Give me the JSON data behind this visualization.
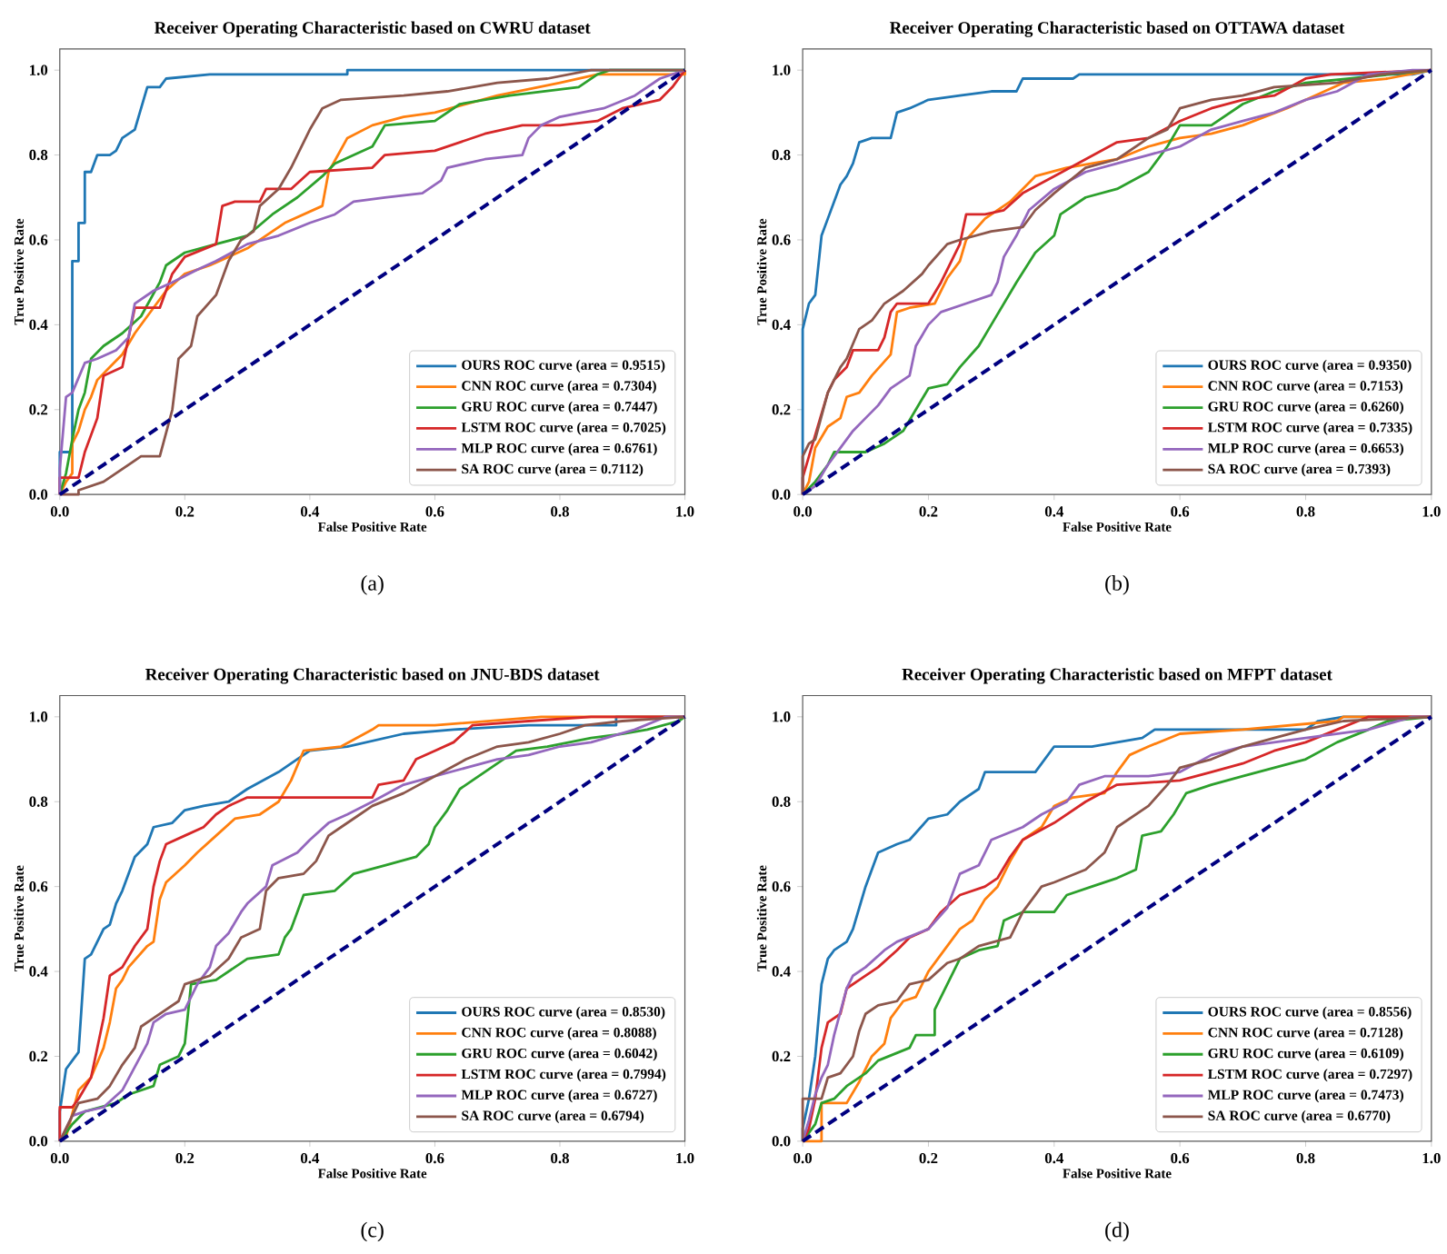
{
  "chart_data": [
    {
      "type": "line",
      "title": "Receiver Operating Characteristic based on CWRU dataset",
      "xlabel": "False Positive Rate",
      "ylabel": "True Positive Rate",
      "xlim": [
        0,
        1
      ],
      "ylim": [
        0,
        1.05
      ],
      "xticks": [
        {
          "value": 0,
          "label": "0.0"
        },
        {
          "value": 0.2,
          "label": "0.2"
        },
        {
          "value": 0.4,
          "label": "0.4"
        },
        {
          "value": 0.6,
          "label": "0.6"
        },
        {
          "value": 0.8,
          "label": "0.8"
        },
        {
          "value": 1,
          "label": "1.0"
        }
      ],
      "yticks": [
        {
          "value": 0,
          "label": "0.0"
        },
        {
          "value": 0.2,
          "label": "0.2"
        },
        {
          "value": 0.4,
          "label": "0.4"
        },
        {
          "value": 0.6,
          "label": "0.6"
        },
        {
          "value": 0.8,
          "label": "0.8"
        },
        {
          "value": 1,
          "label": "1.0"
        }
      ],
      "legend": "bottom right",
      "annotations": [
        "(a)"
      ],
      "series": [
        {
          "name": "OURS ROC curve (area = 0.9515)",
          "color": "#1f77b4",
          "x": [
            0,
            0,
            0.02,
            0.02,
            0.03,
            0.03,
            0.04,
            0.04,
            0.05,
            0.06,
            0.08,
            0.09,
            0.1,
            0.12,
            0.13,
            0.14,
            0.16,
            0.17,
            0.24,
            0.46,
            0.46,
            1
          ],
          "values": [
            0,
            0.1,
            0.1,
            0.55,
            0.55,
            0.64,
            0.64,
            0.76,
            0.76,
            0.8,
            0.8,
            0.81,
            0.84,
            0.86,
            0.91,
            0.96,
            0.96,
            0.98,
            0.99,
            0.99,
            1,
            1
          ]
        },
        {
          "name": "CNN ROC curve (area = 0.7304)",
          "color": "#ff7f0e",
          "x": [
            0,
            0.01,
            0.02,
            0.02,
            0.03,
            0.04,
            0.05,
            0.06,
            0.08,
            0.1,
            0.12,
            0.14,
            0.17,
            0.2,
            0.24,
            0.3,
            0.36,
            0.42,
            0.43,
            0.46,
            0.5,
            0.55,
            0.6,
            0.7,
            0.8,
            0.86,
            1,
            1
          ],
          "values": [
            0,
            0.03,
            0.05,
            0.12,
            0.15,
            0.2,
            0.23,
            0.27,
            0.3,
            0.33,
            0.38,
            0.42,
            0.48,
            0.52,
            0.54,
            0.58,
            0.64,
            0.68,
            0.76,
            0.84,
            0.87,
            0.89,
            0.9,
            0.94,
            0.97,
            0.99,
            0.99,
            1
          ]
        },
        {
          "name": "GRU ROC curve (area = 0.7447)",
          "color": "#2ca02c",
          "x": [
            0,
            0.01,
            0.02,
            0.03,
            0.04,
            0.05,
            0.07,
            0.1,
            0.13,
            0.16,
            0.17,
            0.2,
            0.25,
            0.3,
            0.34,
            0.38,
            0.42,
            0.44,
            0.5,
            0.52,
            0.6,
            0.64,
            0.72,
            0.83,
            0.86,
            0.88,
            1
          ],
          "values": [
            0,
            0.05,
            0.13,
            0.2,
            0.24,
            0.32,
            0.35,
            0.38,
            0.42,
            0.5,
            0.54,
            0.57,
            0.59,
            0.61,
            0.66,
            0.7,
            0.75,
            0.78,
            0.82,
            0.87,
            0.88,
            0.92,
            0.94,
            0.96,
            0.99,
            1,
            1
          ]
        },
        {
          "name": "LSTM ROC curve (area = 0.7025)",
          "color": "#d62728",
          "x": [
            0,
            0,
            0.03,
            0.04,
            0.05,
            0.06,
            0.07,
            0.1,
            0.12,
            0.16,
            0.18,
            0.2,
            0.25,
            0.26,
            0.28,
            0.32,
            0.33,
            0.37,
            0.4,
            0.5,
            0.52,
            0.6,
            0.68,
            0.74,
            0.8,
            0.86,
            0.9,
            0.96,
            0.98,
            1
          ],
          "values": [
            0,
            0.04,
            0.04,
            0.1,
            0.14,
            0.18,
            0.28,
            0.3,
            0.44,
            0.44,
            0.52,
            0.56,
            0.59,
            0.68,
            0.69,
            0.69,
            0.72,
            0.72,
            0.76,
            0.77,
            0.8,
            0.81,
            0.85,
            0.87,
            0.87,
            0.88,
            0.91,
            0.93,
            0.96,
            1
          ]
        },
        {
          "name": "MLP ROC curve (area = 0.6761)",
          "color": "#9467bd",
          "x": [
            0,
            0,
            0.01,
            0.02,
            0.04,
            0.06,
            0.09,
            0.11,
            0.12,
            0.15,
            0.18,
            0.22,
            0.25,
            0.3,
            0.35,
            0.4,
            0.44,
            0.47,
            0.52,
            0.58,
            0.61,
            0.62,
            0.68,
            0.74,
            0.75,
            0.77,
            0.8,
            0.87,
            0.92,
            0.96,
            1
          ],
          "values": [
            0,
            0.06,
            0.23,
            0.24,
            0.31,
            0.32,
            0.34,
            0.37,
            0.45,
            0.48,
            0.5,
            0.53,
            0.55,
            0.59,
            0.61,
            0.64,
            0.66,
            0.69,
            0.7,
            0.71,
            0.74,
            0.77,
            0.79,
            0.8,
            0.84,
            0.87,
            0.89,
            0.91,
            0.94,
            0.98,
            1
          ]
        },
        {
          "name": "SA ROC curve (area = 0.7112)",
          "color": "#8c564b",
          "x": [
            0,
            0.03,
            0.03,
            0.07,
            0.1,
            0.13,
            0.16,
            0.18,
            0.19,
            0.21,
            0.22,
            0.25,
            0.27,
            0.29,
            0.31,
            0.32,
            0.35,
            0.37,
            0.38,
            0.4,
            0.42,
            0.45,
            0.55,
            0.62,
            0.7,
            0.78,
            0.85,
            1
          ],
          "values": [
            0,
            0,
            0.01,
            0.03,
            0.06,
            0.09,
            0.09,
            0.2,
            0.32,
            0.35,
            0.42,
            0.47,
            0.55,
            0.6,
            0.62,
            0.68,
            0.72,
            0.77,
            0.8,
            0.86,
            0.91,
            0.93,
            0.94,
            0.95,
            0.97,
            0.98,
            1,
            1
          ]
        },
        {
          "color": "#000080",
          "line_style": "dashed",
          "x": [
            0,
            1
          ],
          "values": [
            0,
            1
          ]
        }
      ]
    },
    {
      "type": "line",
      "title": "Receiver Operating Characteristic based on OTTAWA dataset",
      "xlabel": "False Positive Rate",
      "ylabel": "True Positive Rate",
      "xlim": [
        0,
        1
      ],
      "ylim": [
        0,
        1.05
      ],
      "xticks": [
        {
          "value": 0,
          "label": "0.0"
        },
        {
          "value": 0.2,
          "label": "0.2"
        },
        {
          "value": 0.4,
          "label": "0.4"
        },
        {
          "value": 0.6,
          "label": "0.6"
        },
        {
          "value": 0.8,
          "label": "0.8"
        },
        {
          "value": 1,
          "label": "1.0"
        }
      ],
      "yticks": [
        {
          "value": 0,
          "label": "0.0"
        },
        {
          "value": 0.2,
          "label": "0.2"
        },
        {
          "value": 0.4,
          "label": "0.4"
        },
        {
          "value": 0.6,
          "label": "0.6"
        },
        {
          "value": 0.8,
          "label": "0.8"
        },
        {
          "value": 1,
          "label": "1.0"
        }
      ],
      "legend": "bottom right",
      "annotations": [
        "(b)"
      ],
      "series": [
        {
          "name": "OURS ROC curve (area = 0.9350)",
          "color": "#1f77b4",
          "x": [
            0,
            0,
            0.01,
            0.02,
            0.03,
            0.04,
            0.06,
            0.07,
            0.08,
            0.09,
            0.11,
            0.14,
            0.15,
            0.17,
            0.2,
            0.25,
            0.3,
            0.34,
            0.35,
            0.43,
            0.44,
            0.8,
            0.97,
            1
          ],
          "values": [
            0,
            0.39,
            0.45,
            0.47,
            0.61,
            0.65,
            0.73,
            0.75,
            0.78,
            0.83,
            0.84,
            0.84,
            0.9,
            0.91,
            0.93,
            0.94,
            0.95,
            0.95,
            0.98,
            0.98,
            0.99,
            0.99,
            0.99,
            1
          ]
        },
        {
          "name": "CNN ROC curve (area = 0.7153)",
          "color": "#ff7f0e",
          "x": [
            0,
            0.01,
            0.02,
            0.04,
            0.06,
            0.07,
            0.09,
            0.11,
            0.14,
            0.15,
            0.17,
            0.21,
            0.23,
            0.25,
            0.26,
            0.29,
            0.33,
            0.35,
            0.37,
            0.42,
            0.5,
            0.55,
            0.6,
            0.65,
            0.7,
            0.77,
            0.83,
            0.86,
            0.93,
            1
          ],
          "values": [
            0,
            0.03,
            0.11,
            0.16,
            0.18,
            0.23,
            0.24,
            0.28,
            0.33,
            0.43,
            0.44,
            0.45,
            0.51,
            0.55,
            0.6,
            0.65,
            0.69,
            0.72,
            0.75,
            0.77,
            0.79,
            0.82,
            0.84,
            0.85,
            0.87,
            0.91,
            0.95,
            0.97,
            0.98,
            1
          ]
        },
        {
          "name": "GRU ROC curve (area = 0.6260)",
          "color": "#2ca02c",
          "x": [
            0,
            0.02,
            0.04,
            0.05,
            0.1,
            0.13,
            0.16,
            0.18,
            0.2,
            0.23,
            0.25,
            0.28,
            0.3,
            0.34,
            0.37,
            0.4,
            0.41,
            0.45,
            0.5,
            0.55,
            0.58,
            0.6,
            0.65,
            0.7,
            0.75,
            0.8,
            0.87,
            1
          ],
          "values": [
            0,
            0.03,
            0.07,
            0.1,
            0.1,
            0.12,
            0.15,
            0.2,
            0.25,
            0.26,
            0.3,
            0.35,
            0.4,
            0.5,
            0.57,
            0.61,
            0.66,
            0.7,
            0.72,
            0.76,
            0.82,
            0.87,
            0.87,
            0.92,
            0.95,
            0.97,
            0.98,
            1
          ]
        },
        {
          "name": "LSTM ROC curve (area = 0.7335)",
          "color": "#d62728",
          "x": [
            0,
            0,
            0.01,
            0.02,
            0.03,
            0.04,
            0.05,
            0.07,
            0.08,
            0.12,
            0.13,
            0.14,
            0.15,
            0.2,
            0.22,
            0.25,
            0.26,
            0.29,
            0.32,
            0.35,
            0.4,
            0.45,
            0.5,
            0.55,
            0.6,
            0.65,
            0.7,
            0.75,
            0.8,
            0.84,
            1
          ],
          "values": [
            0,
            0.04,
            0.09,
            0.14,
            0.19,
            0.24,
            0.27,
            0.3,
            0.34,
            0.34,
            0.37,
            0.43,
            0.45,
            0.45,
            0.5,
            0.59,
            0.66,
            0.66,
            0.67,
            0.71,
            0.75,
            0.79,
            0.83,
            0.84,
            0.88,
            0.91,
            0.93,
            0.94,
            0.98,
            0.99,
            1
          ]
        },
        {
          "name": "MLP ROC curve (area = 0.6653)",
          "color": "#9467bd",
          "x": [
            0,
            0.02,
            0.04,
            0.06,
            0.08,
            0.1,
            0.12,
            0.14,
            0.17,
            0.18,
            0.2,
            0.22,
            0.26,
            0.3,
            0.31,
            0.32,
            0.34,
            0.36,
            0.4,
            0.45,
            0.5,
            0.55,
            0.6,
            0.65,
            0.7,
            0.75,
            0.8,
            0.85,
            0.9,
            0.97,
            1
          ],
          "values": [
            0,
            0.02,
            0.07,
            0.11,
            0.15,
            0.18,
            0.21,
            0.25,
            0.28,
            0.35,
            0.4,
            0.43,
            0.45,
            0.47,
            0.5,
            0.56,
            0.61,
            0.67,
            0.72,
            0.76,
            0.78,
            0.8,
            0.82,
            0.86,
            0.88,
            0.9,
            0.93,
            0.95,
            0.99,
            1,
            1
          ]
        },
        {
          "name": "SA ROC curve (area = 0.7393)",
          "color": "#8c564b",
          "x": [
            0,
            0,
            0.01,
            0.02,
            0.04,
            0.06,
            0.07,
            0.09,
            0.11,
            0.13,
            0.16,
            0.19,
            0.2,
            0.23,
            0.25,
            0.3,
            0.35,
            0.37,
            0.4,
            0.45,
            0.5,
            0.55,
            0.58,
            0.6,
            0.65,
            0.7,
            0.75,
            0.85,
            0.92,
            1
          ],
          "values": [
            0,
            0.09,
            0.12,
            0.13,
            0.24,
            0.3,
            0.32,
            0.39,
            0.41,
            0.45,
            0.48,
            0.52,
            0.54,
            0.59,
            0.6,
            0.62,
            0.63,
            0.67,
            0.71,
            0.77,
            0.79,
            0.84,
            0.86,
            0.91,
            0.93,
            0.94,
            0.96,
            0.97,
            0.99,
            1
          ]
        },
        {
          "color": "#000080",
          "line_style": "dashed",
          "x": [
            0,
            1
          ],
          "values": [
            0,
            1
          ]
        }
      ]
    },
    {
      "type": "line",
      "title": "Receiver Operating Characteristic based on JNU-BDS dataset",
      "xlabel": "False Positive Rate",
      "ylabel": "True Positive Rate",
      "xlim": [
        0,
        1
      ],
      "ylim": [
        0,
        1.05
      ],
      "xticks": [
        {
          "value": 0,
          "label": "0.0"
        },
        {
          "value": 0.2,
          "label": "0.2"
        },
        {
          "value": 0.4,
          "label": "0.4"
        },
        {
          "value": 0.6,
          "label": "0.6"
        },
        {
          "value": 0.8,
          "label": "0.8"
        },
        {
          "value": 1,
          "label": "1.0"
        }
      ],
      "yticks": [
        {
          "value": 0,
          "label": "0.0"
        },
        {
          "value": 0.2,
          "label": "0.2"
        },
        {
          "value": 0.4,
          "label": "0.4"
        },
        {
          "value": 0.6,
          "label": "0.6"
        },
        {
          "value": 0.8,
          "label": "0.8"
        },
        {
          "value": 1,
          "label": "1.0"
        }
      ],
      "legend": "bottom right",
      "annotations": [
        "(c)"
      ],
      "series": [
        {
          "name": "OURS ROC curve (area = 0.8530)",
          "color": "#1f77b4",
          "x": [
            0,
            0,
            0.01,
            0.02,
            0.03,
            0.04,
            0.05,
            0.07,
            0.08,
            0.09,
            0.1,
            0.12,
            0.14,
            0.15,
            0.18,
            0.2,
            0.23,
            0.27,
            0.3,
            0.35,
            0.37,
            0.4,
            0.46,
            0.55,
            0.63,
            0.75,
            0.89,
            0.89,
            1
          ],
          "values": [
            0,
            0.07,
            0.17,
            0.19,
            0.21,
            0.43,
            0.44,
            0.5,
            0.51,
            0.56,
            0.59,
            0.67,
            0.7,
            0.74,
            0.75,
            0.78,
            0.79,
            0.8,
            0.83,
            0.87,
            0.89,
            0.92,
            0.93,
            0.96,
            0.97,
            0.98,
            0.98,
            1,
            1
          ]
        },
        {
          "name": "CNN ROC curve (area = 0.8088)",
          "color": "#ff7f0e",
          "x": [
            0,
            0.01,
            0.03,
            0.05,
            0.07,
            0.08,
            0.09,
            0.1,
            0.11,
            0.14,
            0.15,
            0.16,
            0.17,
            0.2,
            0.22,
            0.25,
            0.28,
            0.32,
            0.35,
            0.37,
            0.39,
            0.45,
            0.5,
            0.51,
            0.6,
            0.77,
            1
          ],
          "values": [
            0,
            0.01,
            0.12,
            0.15,
            0.22,
            0.28,
            0.36,
            0.38,
            0.41,
            0.46,
            0.47,
            0.57,
            0.61,
            0.65,
            0.68,
            0.72,
            0.76,
            0.77,
            0.8,
            0.85,
            0.92,
            0.93,
            0.97,
            0.98,
            0.98,
            1,
            1
          ]
        },
        {
          "name": "GRU ROC curve (area = 0.6042)",
          "color": "#2ca02c",
          "x": [
            0,
            0.02,
            0.04,
            0.09,
            0.11,
            0.15,
            0.16,
            0.19,
            0.2,
            0.21,
            0.25,
            0.3,
            0.35,
            0.36,
            0.37,
            0.38,
            0.39,
            0.44,
            0.47,
            0.52,
            0.57,
            0.59,
            0.6,
            0.62,
            0.64,
            0.66,
            0.7,
            0.73,
            0.78,
            0.85,
            0.9,
            0.94,
            0.99,
            1
          ],
          "values": [
            0,
            0.04,
            0.07,
            0.09,
            0.11,
            0.13,
            0.18,
            0.2,
            0.23,
            0.37,
            0.38,
            0.43,
            0.44,
            0.48,
            0.5,
            0.54,
            0.58,
            0.59,
            0.63,
            0.65,
            0.67,
            0.7,
            0.74,
            0.78,
            0.83,
            0.85,
            0.89,
            0.92,
            0.93,
            0.95,
            0.96,
            0.97,
            0.99,
            1
          ]
        },
        {
          "name": "LSTM ROC curve (area = 0.7994)",
          "color": "#d62728",
          "x": [
            0,
            0,
            0.02,
            0.03,
            0.05,
            0.07,
            0.08,
            0.1,
            0.12,
            0.14,
            0.15,
            0.16,
            0.17,
            0.2,
            0.23,
            0.25,
            0.27,
            0.3,
            0.45,
            0.5,
            0.51,
            0.55,
            0.57,
            0.6,
            0.63,
            0.66,
            0.75,
            0.85,
            1
          ],
          "values": [
            0,
            0.08,
            0.08,
            0.1,
            0.15,
            0.29,
            0.39,
            0.41,
            0.46,
            0.5,
            0.6,
            0.66,
            0.7,
            0.72,
            0.74,
            0.77,
            0.79,
            0.81,
            0.81,
            0.81,
            0.84,
            0.85,
            0.9,
            0.92,
            0.94,
            0.98,
            0.99,
            1,
            1
          ]
        },
        {
          "name": "MLP ROC curve (area = 0.6727)",
          "color": "#9467bd",
          "x": [
            0,
            0.02,
            0.04,
            0.07,
            0.1,
            0.14,
            0.15,
            0.17,
            0.2,
            0.22,
            0.24,
            0.25,
            0.27,
            0.29,
            0.3,
            0.33,
            0.34,
            0.38,
            0.4,
            0.43,
            0.46,
            0.5,
            0.55,
            0.6,
            0.65,
            0.7,
            0.75,
            0.8,
            0.85,
            0.92,
            0.97,
            1
          ],
          "values": [
            0,
            0.06,
            0.07,
            0.08,
            0.12,
            0.23,
            0.28,
            0.3,
            0.31,
            0.37,
            0.41,
            0.46,
            0.49,
            0.54,
            0.56,
            0.6,
            0.65,
            0.68,
            0.71,
            0.75,
            0.77,
            0.8,
            0.84,
            0.86,
            0.88,
            0.9,
            0.91,
            0.93,
            0.94,
            0.97,
            1,
            1
          ]
        },
        {
          "name": "SA ROC curve (area = 0.6794)",
          "color": "#8c564b",
          "x": [
            0,
            0.01,
            0.02,
            0.03,
            0.06,
            0.08,
            0.1,
            0.12,
            0.13,
            0.15,
            0.19,
            0.2,
            0.24,
            0.27,
            0.29,
            0.32,
            0.33,
            0.35,
            0.39,
            0.41,
            0.43,
            0.45,
            0.48,
            0.5,
            0.55,
            0.6,
            0.65,
            0.7,
            0.75,
            0.8,
            0.84,
            0.9,
            1
          ],
          "values": [
            0,
            0.03,
            0.06,
            0.09,
            0.1,
            0.13,
            0.18,
            0.22,
            0.27,
            0.29,
            0.33,
            0.37,
            0.39,
            0.43,
            0.48,
            0.5,
            0.59,
            0.62,
            0.63,
            0.66,
            0.72,
            0.74,
            0.77,
            0.79,
            0.82,
            0.86,
            0.9,
            0.93,
            0.94,
            0.96,
            0.98,
            0.99,
            1
          ]
        },
        {
          "color": "#000080",
          "line_style": "dashed",
          "x": [
            0,
            1
          ],
          "values": [
            0,
            1
          ]
        }
      ]
    },
    {
      "type": "line",
      "title": "Receiver Operating Characteristic based on MFPT dataset",
      "xlabel": "False Positive Rate",
      "ylabel": "True Positive Rate",
      "xlim": [
        0,
        1
      ],
      "ylim": [
        0,
        1.05
      ],
      "xticks": [
        {
          "value": 0,
          "label": "0.0"
        },
        {
          "value": 0.2,
          "label": "0.2"
        },
        {
          "value": 0.4,
          "label": "0.4"
        },
        {
          "value": 0.6,
          "label": "0.6"
        },
        {
          "value": 0.8,
          "label": "0.8"
        },
        {
          "value": 1,
          "label": "1.0"
        }
      ],
      "yticks": [
        {
          "value": 0,
          "label": "0.0"
        },
        {
          "value": 0.2,
          "label": "0.2"
        },
        {
          "value": 0.4,
          "label": "0.4"
        },
        {
          "value": 0.6,
          "label": "0.6"
        },
        {
          "value": 0.8,
          "label": "0.8"
        },
        {
          "value": 1,
          "label": "1.0"
        }
      ],
      "legend": "bottom right",
      "annotations": [
        "(d)"
      ],
      "series": [
        {
          "name": "OURS ROC curve (area = 0.8556)",
          "color": "#1f77b4",
          "x": [
            0,
            0,
            0.01,
            0.02,
            0.03,
            0.04,
            0.05,
            0.07,
            0.08,
            0.09,
            0.1,
            0.12,
            0.15,
            0.17,
            0.2,
            0.23,
            0.25,
            0.28,
            0.29,
            0.37,
            0.4,
            0.46,
            0.54,
            0.56,
            0.69,
            0.8,
            0.82,
            0.86,
            1
          ],
          "values": [
            0,
            0.03,
            0.1,
            0.2,
            0.37,
            0.43,
            0.45,
            0.47,
            0.5,
            0.55,
            0.6,
            0.68,
            0.7,
            0.71,
            0.76,
            0.77,
            0.8,
            0.83,
            0.87,
            0.87,
            0.93,
            0.93,
            0.95,
            0.97,
            0.97,
            0.97,
            0.99,
            1,
            1
          ]
        },
        {
          "name": "CNN ROC curve (area = 0.7128)",
          "color": "#ff7f0e",
          "x": [
            0,
            0.03,
            0.03,
            0.07,
            0.09,
            0.11,
            0.13,
            0.14,
            0.16,
            0.18,
            0.2,
            0.22,
            0.25,
            0.27,
            0.29,
            0.31,
            0.33,
            0.35,
            0.38,
            0.4,
            0.43,
            0.48,
            0.5,
            0.52,
            0.55,
            0.6,
            0.7,
            0.85,
            0.86,
            1
          ],
          "values": [
            0,
            0,
            0.09,
            0.09,
            0.14,
            0.2,
            0.23,
            0.29,
            0.33,
            0.34,
            0.4,
            0.44,
            0.5,
            0.52,
            0.57,
            0.6,
            0.66,
            0.71,
            0.74,
            0.79,
            0.81,
            0.82,
            0.87,
            0.91,
            0.93,
            0.96,
            0.97,
            0.99,
            1,
            1
          ]
        },
        {
          "name": "GRU ROC curve (area = 0.6109)",
          "color": "#2ca02c",
          "x": [
            0,
            0.02,
            0.03,
            0.05,
            0.07,
            0.1,
            0.12,
            0.17,
            0.18,
            0.21,
            0.21,
            0.23,
            0.25,
            0.28,
            0.31,
            0.32,
            0.35,
            0.4,
            0.42,
            0.46,
            0.5,
            0.53,
            0.54,
            0.57,
            0.59,
            0.61,
            0.65,
            0.7,
            0.75,
            0.8,
            0.85,
            0.9,
            0.93,
            1
          ],
          "values": [
            0,
            0.04,
            0.09,
            0.1,
            0.13,
            0.16,
            0.19,
            0.22,
            0.25,
            0.25,
            0.31,
            0.37,
            0.43,
            0.45,
            0.46,
            0.52,
            0.54,
            0.54,
            0.58,
            0.6,
            0.62,
            0.64,
            0.72,
            0.73,
            0.77,
            0.82,
            0.84,
            0.86,
            0.88,
            0.9,
            0.94,
            0.97,
            0.99,
            1
          ]
        },
        {
          "name": "LSTM ROC curve (area = 0.7297)",
          "color": "#d62728",
          "x": [
            0,
            0.01,
            0.02,
            0.03,
            0.04,
            0.06,
            0.07,
            0.09,
            0.12,
            0.15,
            0.17,
            0.2,
            0.22,
            0.25,
            0.29,
            0.31,
            0.33,
            0.35,
            0.4,
            0.45,
            0.5,
            0.6,
            0.65,
            0.7,
            0.75,
            0.8,
            0.85,
            0.9,
            1
          ],
          "values": [
            0,
            0.03,
            0.1,
            0.22,
            0.28,
            0.3,
            0.36,
            0.38,
            0.41,
            0.45,
            0.48,
            0.5,
            0.54,
            0.58,
            0.6,
            0.62,
            0.67,
            0.71,
            0.75,
            0.8,
            0.84,
            0.85,
            0.87,
            0.89,
            0.92,
            0.94,
            0.97,
            1,
            1
          ]
        },
        {
          "name": "MLP ROC curve (area = 0.7473)",
          "color": "#9467bd",
          "x": [
            0,
            0.01,
            0.02,
            0.03,
            0.04,
            0.05,
            0.07,
            0.08,
            0.1,
            0.13,
            0.15,
            0.2,
            0.23,
            0.25,
            0.28,
            0.3,
            0.35,
            0.38,
            0.42,
            0.44,
            0.48,
            0.55,
            0.6,
            0.65,
            0.7,
            0.8,
            0.9,
            0.97,
            1
          ],
          "values": [
            0,
            0.05,
            0.11,
            0.15,
            0.18,
            0.25,
            0.36,
            0.39,
            0.41,
            0.45,
            0.47,
            0.5,
            0.55,
            0.63,
            0.65,
            0.71,
            0.74,
            0.77,
            0.8,
            0.84,
            0.86,
            0.86,
            0.87,
            0.91,
            0.93,
            0.95,
            0.97,
            1,
            1
          ]
        },
        {
          "name": "SA ROC curve (area = 0.6770)",
          "color": "#8c564b",
          "x": [
            0,
            0,
            0.03,
            0.04,
            0.06,
            0.08,
            0.09,
            0.1,
            0.12,
            0.15,
            0.17,
            0.2,
            0.23,
            0.25,
            0.28,
            0.33,
            0.35,
            0.38,
            0.4,
            0.45,
            0.48,
            0.5,
            0.55,
            0.58,
            0.6,
            0.65,
            0.7,
            0.75,
            0.8,
            0.86,
            1
          ],
          "values": [
            0,
            0.1,
            0.1,
            0.15,
            0.16,
            0.2,
            0.26,
            0.3,
            0.32,
            0.33,
            0.37,
            0.38,
            0.42,
            0.43,
            0.46,
            0.48,
            0.54,
            0.6,
            0.61,
            0.64,
            0.68,
            0.74,
            0.79,
            0.84,
            0.88,
            0.9,
            0.93,
            0.95,
            0.97,
            0.99,
            1
          ]
        },
        {
          "color": "#000080",
          "line_style": "dashed",
          "x": [
            0,
            1
          ],
          "values": [
            0,
            1
          ]
        }
      ]
    }
  ]
}
